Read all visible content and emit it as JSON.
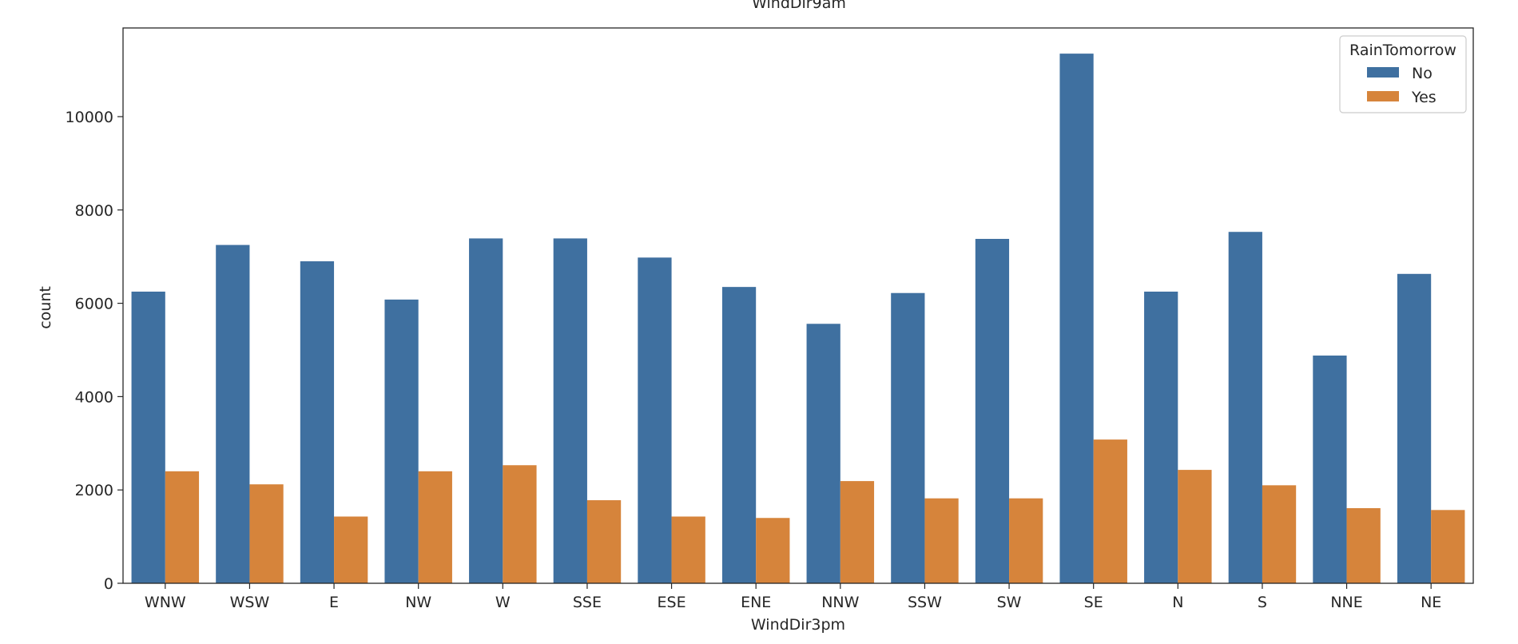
{
  "chart_data": {
    "type": "bar",
    "title": "WindDir9am",
    "xlabel": "WindDir3pm",
    "ylabel": "count",
    "categories": [
      "WNW",
      "WSW",
      "E",
      "NW",
      "W",
      "SSE",
      "ESE",
      "ENE",
      "NNW",
      "SSW",
      "SW",
      "SE",
      "N",
      "S",
      "NNE",
      "NE"
    ],
    "series": [
      {
        "name": "No",
        "color": "#3f70a0",
        "values": [
          6250,
          7250,
          6900,
          6080,
          7390,
          7390,
          6980,
          6350,
          5560,
          6220,
          7380,
          11350,
          6250,
          7530,
          4880,
          6630
        ]
      },
      {
        "name": "Yes",
        "color": "#d6843b",
        "values": [
          2400,
          2120,
          1430,
          2400,
          2530,
          1780,
          1430,
          1400,
          2190,
          1820,
          1820,
          3080,
          2430,
          2100,
          1610,
          1570
        ]
      }
    ],
    "ylim": [
      0,
      11900
    ],
    "yticks": [
      0,
      2000,
      4000,
      6000,
      8000,
      10000
    ],
    "legend_title": "RainTomorrow",
    "legend_position": "top-right",
    "grid": false
  }
}
